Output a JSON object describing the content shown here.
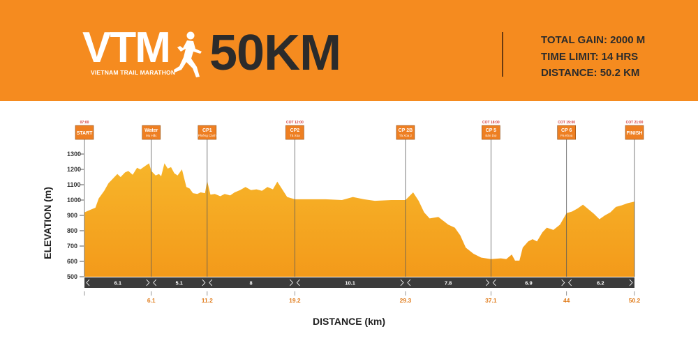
{
  "header": {
    "logo": "VTM",
    "logo_sub": "VIETNAM TRAIL MARATHON",
    "race": "50KM",
    "stats": [
      "TOTAL GAIN: 2000 M",
      "TIME LIMIT: 14 HRS",
      "DISTANCE: 50.2 KM"
    ]
  },
  "colors": {
    "orange": "#f58b1f",
    "fill_top": "#f7a823",
    "fill_bottom": "#f39a1a",
    "dark_bar": "#3b3b3b",
    "cutoff_red": "#d33b3b"
  },
  "chart_data": {
    "type": "area",
    "xlabel": "DISTANCE (km)",
    "ylabel": "ELEVATION (m)",
    "ylim": [
      500,
      1300
    ],
    "xlim": [
      0,
      50.2
    ],
    "yticks": [
      500,
      600,
      700,
      800,
      900,
      1000,
      1100,
      1200,
      1300
    ],
    "grid": false,
    "x_tick_labels": [
      "6.1",
      "11.2",
      "19.2",
      "29.3",
      "37.1",
      "44",
      "50.2"
    ],
    "segments": [
      "6.1",
      "5.1",
      "8",
      "10.1",
      "7.8",
      "6.9",
      "6.2"
    ],
    "checkpoints": [
      {
        "name": "START",
        "sub": "",
        "time": "07:00",
        "km": 0
      },
      {
        "name": "Water",
        "sub": "Mu Hắc",
        "time": "",
        "km": 6.1
      },
      {
        "name": "CP1",
        "sub": "Phiêng Cành",
        "time": "",
        "km": 11.2
      },
      {
        "name": "CP2",
        "sub": "Tà Xùa",
        "time": "COT 12:00",
        "km": 19.2
      },
      {
        "name": "CP 2B",
        "sub": "Tà Xùa 2",
        "time": "",
        "km": 29.3
      },
      {
        "name": "CP 5",
        "sub": "Bản Dọi",
        "time": "COT 18:00",
        "km": 37.1
      },
      {
        "name": "CP 6",
        "sub": "Pa Khoa",
        "time": "COT 19:00",
        "km": 44
      },
      {
        "name": "FINISH",
        "sub": "",
        "time": "COT 21:00",
        "km": 50.2
      }
    ],
    "x": [
      0,
      0.5,
      1.0,
      1.3,
      1.8,
      2.2,
      2.6,
      3.0,
      3.3,
      3.7,
      4.0,
      4.4,
      4.8,
      5.1,
      5.5,
      5.9,
      6.1,
      6.5,
      6.8,
      7.0,
      7.3,
      7.6,
      7.9,
      8.2,
      8.5,
      8.9,
      9.3,
      9.6,
      9.9,
      10.3,
      10.6,
      11.0,
      11.2,
      11.5,
      11.9,
      12.4,
      12.8,
      13.3,
      13.7,
      14.2,
      14.7,
      15.2,
      15.7,
      16.2,
      16.7,
      17.2,
      17.6,
      18.1,
      18.5,
      19.2,
      20.5,
      22.0,
      23.5,
      24.5,
      25.5,
      26.5,
      28.0,
      29.3,
      30.0,
      30.5,
      31.0,
      31.5,
      32.3,
      33.2,
      33.8,
      34.3,
      34.8,
      35.5,
      36.2,
      37.1,
      38.0,
      38.5,
      39.0,
      39.3,
      39.7,
      40.0,
      40.5,
      40.9,
      41.3,
      41.8,
      42.2,
      42.8,
      43.4,
      44.0,
      44.5,
      45.0,
      45.5,
      46.0,
      46.5,
      47.0,
      47.5,
      48.0,
      48.5,
      49.0,
      49.6,
      50.2
    ],
    "values": [
      920,
      935,
      950,
      1010,
      1060,
      1110,
      1140,
      1170,
      1150,
      1180,
      1190,
      1165,
      1210,
      1200,
      1220,
      1240,
      1190,
      1160,
      1170,
      1155,
      1240,
      1205,
      1215,
      1175,
      1160,
      1200,
      1085,
      1075,
      1045,
      1040,
      1050,
      1045,
      1125,
      1035,
      1040,
      1025,
      1040,
      1030,
      1050,
      1065,
      1085,
      1065,
      1070,
      1060,
      1085,
      1070,
      1120,
      1065,
      1020,
      1005,
      1005,
      1005,
      1000,
      1020,
      1005,
      995,
      1000,
      1000,
      1050,
      995,
      920,
      880,
      890,
      840,
      820,
      770,
      690,
      650,
      625,
      615,
      620,
      615,
      645,
      605,
      605,
      690,
      730,
      745,
      730,
      790,
      820,
      805,
      840,
      915,
      925,
      945,
      970,
      940,
      910,
      875,
      900,
      920,
      955,
      965,
      980,
      990
    ]
  }
}
